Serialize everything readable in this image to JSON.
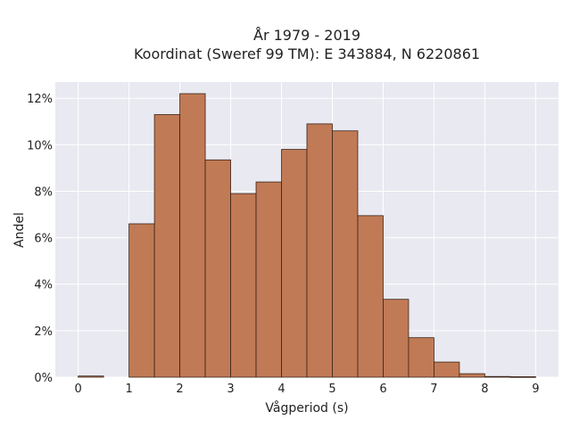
{
  "chart_data": {
    "type": "bar",
    "title_lines": [
      "År 1979 - 2019",
      "Koordinat (Sweref 99 TM): E 343884, N 6220861"
    ],
    "xlabel": "Vågperiod (s)",
    "ylabel": "Andel",
    "bin_width": 0.5,
    "bins": [
      {
        "x0": 0.0,
        "value": 0.05
      },
      {
        "x0": 1.0,
        "value": 6.6
      },
      {
        "x0": 1.5,
        "value": 11.3
      },
      {
        "x0": 2.0,
        "value": 12.2
      },
      {
        "x0": 2.5,
        "value": 9.35
      },
      {
        "x0": 3.0,
        "value": 7.9
      },
      {
        "x0": 3.5,
        "value": 8.4
      },
      {
        "x0": 4.0,
        "value": 9.8
      },
      {
        "x0": 4.5,
        "value": 10.9
      },
      {
        "x0": 5.0,
        "value": 10.6
      },
      {
        "x0": 5.5,
        "value": 6.95
      },
      {
        "x0": 6.0,
        "value": 3.35
      },
      {
        "x0": 6.5,
        "value": 1.7
      },
      {
        "x0": 7.0,
        "value": 0.65
      },
      {
        "x0": 7.5,
        "value": 0.15
      },
      {
        "x0": 8.0,
        "value": 0.03
      },
      {
        "x0": 8.5,
        "value": 0.02
      }
    ],
    "xlim": [
      -0.45,
      9.45
    ],
    "ylim": [
      0,
      12.7
    ],
    "xticks": [
      0,
      1,
      2,
      3,
      4,
      5,
      6,
      7,
      8,
      9
    ],
    "xtick_labels": [
      "0",
      "1",
      "2",
      "3",
      "4",
      "5",
      "6",
      "7",
      "8",
      "9"
    ],
    "yticks": [
      0,
      2,
      4,
      6,
      8,
      10,
      12
    ],
    "ytick_labels": [
      "0%",
      "2%",
      "4%",
      "6%",
      "8%",
      "10%",
      "12%"
    ],
    "grid": true,
    "bar_color": "#c07a55",
    "bar_edge_color": "#3a2418",
    "plot_background": "#e9e9f1"
  }
}
